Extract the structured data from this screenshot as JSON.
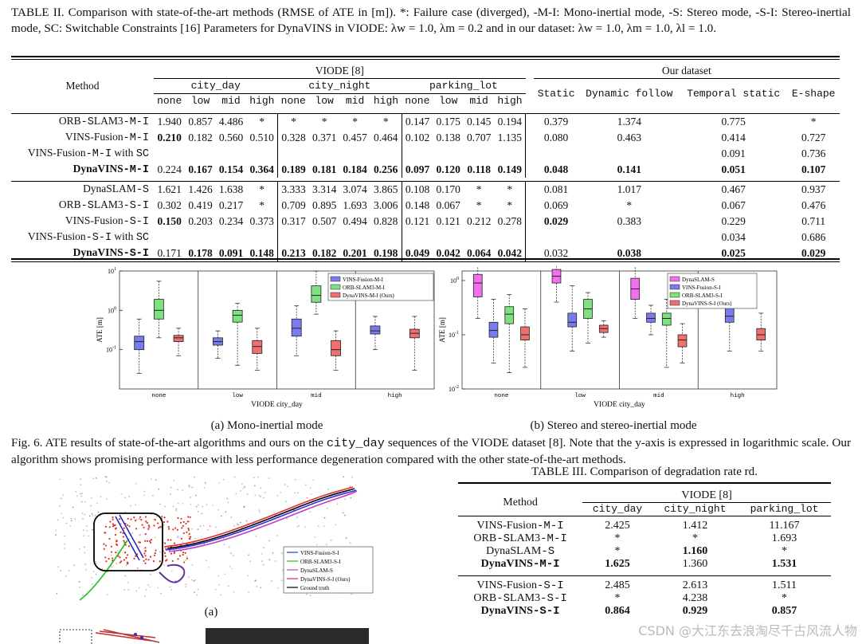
{
  "table2": {
    "caption": "TABLE II. Comparison with state-of-the-art methods (RMSE of ATE in [m]). *: Failure case (diverged), -M-I: Mono-inertial mode, -S: Stereo mode, -S-I: Stereo-inertial mode, SC: Switchable Constraints [16] Parameters for DynaVINS in VIODE: λw = 1.0, λm = 0.2 and in our dataset: λw = 1.0, λm = 1.0, λl = 1.0.",
    "method_header": "Method",
    "viode_header": "VIODE [8]",
    "ours_header": "Our dataset",
    "sequences": [
      "city_day",
      "city_night",
      "parking_lot"
    ],
    "levels": [
      "none",
      "low",
      "mid",
      "high"
    ],
    "ours_cols": [
      "Static",
      "Dynamic follow",
      "Temporal static",
      "E-shape"
    ],
    "rows": [
      {
        "method": "ORB-SLAM3-M-I",
        "vals": [
          "1.940",
          "0.857",
          "4.486",
          "*",
          "*",
          "*",
          "*",
          "*",
          "0.147",
          "0.175",
          "0.145",
          "0.194",
          "0.379",
          "1.374",
          "0.775",
          "*"
        ],
        "bold": [],
        "group": 1
      },
      {
        "method": "VINS-Fusion-M-I",
        "vals": [
          "0.210",
          "0.182",
          "0.560",
          "0.510",
          "0.328",
          "0.371",
          "0.457",
          "0.464",
          "0.102",
          "0.138",
          "0.707",
          "1.135",
          "0.080",
          "0.463",
          "0.414",
          "0.727"
        ],
        "bold": [
          0
        ],
        "group": 1
      },
      {
        "method": "VINS-Fusion-M-I with SC",
        "vals": [
          "",
          "",
          "",
          "",
          "",
          "",
          "",
          "",
          "",
          "",
          "",
          "",
          "",
          "",
          "0.091",
          "0.736"
        ],
        "bold": [],
        "group": 1
      },
      {
        "method": "DynaVINS-M-I",
        "vals": [
          "0.224",
          "0.167",
          "0.154",
          "0.364",
          "0.189",
          "0.181",
          "0.184",
          "0.256",
          "0.097",
          "0.120",
          "0.118",
          "0.149",
          "0.048",
          "0.141",
          "0.051",
          "0.107"
        ],
        "bold": [
          1,
          2,
          3,
          4,
          5,
          6,
          7,
          8,
          9,
          10,
          11,
          12,
          13,
          14,
          15
        ],
        "group": 1,
        "method_bold": true
      },
      {
        "method": "DynaSLAM-S",
        "vals": [
          "1.621",
          "1.426",
          "1.638",
          "*",
          "3.333",
          "3.314",
          "3.074",
          "3.865",
          "0.108",
          "0.170",
          "*",
          "*",
          "0.081",
          "1.017",
          "0.467",
          "0.937"
        ],
        "bold": [],
        "group": 2
      },
      {
        "method": "ORB-SLAM3-S-I",
        "vals": [
          "0.302",
          "0.419",
          "0.217",
          "*",
          "0.709",
          "0.895",
          "1.693",
          "3.006",
          "0.148",
          "0.067",
          "*",
          "*",
          "0.069",
          "*",
          "0.067",
          "0.476"
        ],
        "bold": [],
        "group": 2
      },
      {
        "method": "VINS-Fusion-S-I",
        "vals": [
          "0.150",
          "0.203",
          "0.234",
          "0.373",
          "0.317",
          "0.507",
          "0.494",
          "0.828",
          "0.121",
          "0.121",
          "0.212",
          "0.278",
          "0.029",
          "0.383",
          "0.229",
          "0.711"
        ],
        "bold": [
          0,
          12
        ],
        "group": 2
      },
      {
        "method": "VINS-Fusion-S-I with SC",
        "vals": [
          "",
          "",
          "",
          "",
          "",
          "",
          "",
          "",
          "",
          "",
          "",
          "",
          "",
          "",
          "0.034",
          "0.686"
        ],
        "bold": [],
        "group": 2
      },
      {
        "method": "DynaVINS-S-I",
        "vals": [
          "0.171",
          "0.178",
          "0.091",
          "0.148",
          "0.213",
          "0.182",
          "0.201",
          "0.198",
          "0.049",
          "0.042",
          "0.064",
          "0.042",
          "0.032",
          "0.038",
          "0.025",
          "0.029"
        ],
        "bold": [
          1,
          2,
          3,
          4,
          5,
          6,
          7,
          8,
          9,
          10,
          11,
          13,
          14,
          15
        ],
        "group": 2,
        "method_bold": true
      }
    ]
  },
  "chart_data": [
    {
      "type": "box",
      "caption": "(a) Mono-inertial mode",
      "xlabel": "VIODE city_day",
      "ylabel": "ATE [m]",
      "yscale": "log",
      "ylim": [
        0.01,
        10
      ],
      "yticks": [
        "10^1",
        "10^0",
        "10^-1"
      ],
      "categories": [
        "none",
        "low",
        "mid",
        "high"
      ],
      "series": [
        {
          "name": "VINS-Fusion-M-I",
          "color": "#7b7bf0",
          "boxes": [
            [
              0.025,
              0.1,
              0.16,
              0.22,
              0.6
            ],
            [
              0.06,
              0.13,
              0.16,
              0.2,
              0.3
            ],
            [
              0.07,
              0.22,
              0.35,
              0.6,
              1.3
            ],
            [
              0.1,
              0.25,
              0.3,
              0.4,
              0.7
            ]
          ]
        },
        {
          "name": "ORB-SLAM3-M-I",
          "color": "#7fe07f",
          "boxes": [
            [
              0.2,
              0.6,
              1.0,
              1.9,
              5.5
            ],
            [
              0.04,
              0.5,
              0.75,
              1.0,
              1.5
            ],
            [
              0.8,
              1.6,
              2.4,
              4.2,
              10
            ],
            null
          ]
        },
        {
          "name": "DynaVINS-M-I (Ours)",
          "color": "#f07070",
          "boxes": [
            [
              0.07,
              0.16,
              0.2,
              0.23,
              0.35
            ],
            [
              0.03,
              0.08,
              0.12,
              0.17,
              0.35
            ],
            [
              0.03,
              0.07,
              0.1,
              0.17,
              0.3
            ],
            [
              0.03,
              0.2,
              0.26,
              0.33,
              0.7
            ]
          ]
        }
      ]
    },
    {
      "type": "box",
      "caption": "(b) Stereo and stereo-inertial mode",
      "xlabel": "VIODE city_day",
      "ylabel": "ATE [m]",
      "yscale": "log",
      "ylim": [
        0.01,
        1.5
      ],
      "yticks": [
        "10^0",
        "10^-1",
        "10^-2"
      ],
      "categories": [
        "none",
        "low",
        "mid",
        "high"
      ],
      "series": [
        {
          "name": "DynaSLAM-S",
          "color": "#f070f0",
          "boxes": [
            [
              0.2,
              0.5,
              0.9,
              1.3,
              2.5
            ],
            [
              0.4,
              0.9,
              1.2,
              1.6,
              3.0
            ],
            [
              0.2,
              0.45,
              0.7,
              1.1,
              2.5
            ],
            null
          ]
        },
        {
          "name": "VINS-Fusion-S-I",
          "color": "#7b7bf0",
          "boxes": [
            [
              0.03,
              0.09,
              0.12,
              0.17,
              0.45
            ],
            [
              0.05,
              0.14,
              0.17,
              0.25,
              0.8
            ],
            [
              0.1,
              0.17,
              0.2,
              0.25,
              0.35
            ],
            [
              0.05,
              0.17,
              0.22,
              0.32,
              0.5
            ]
          ]
        },
        {
          "name": "ORB-SLAM3-S-I",
          "color": "#7fe07f",
          "boxes": [
            [
              0.02,
              0.16,
              0.24,
              0.33,
              0.55
            ],
            [
              0.07,
              0.2,
              0.3,
              0.45,
              0.6
            ],
            [
              0.025,
              0.15,
              0.2,
              0.25,
              0.45
            ],
            null
          ]
        },
        {
          "name": "DynaVINS-S-I (Ours)",
          "color": "#f07070",
          "boxes": [
            [
              0.025,
              0.08,
              0.1,
              0.14,
              0.3
            ],
            [
              0.09,
              0.11,
              0.13,
              0.15,
              0.18
            ],
            [
              0.03,
              0.06,
              0.08,
              0.1,
              0.16
            ],
            [
              0.05,
              0.08,
              0.1,
              0.13,
              0.25
            ]
          ]
        }
      ]
    }
  ],
  "fig6": {
    "caption": "Fig. 6. ATE results of state-of-the-art algorithms and ours on the city_day sequences of the VIODE dataset [8]. Note that the y-axis is expressed in logarithmic scale. Our algorithm shows promising performance with less performance degeneration compared with the other state-of-the-art methods."
  },
  "traj_legend": [
    "VINS-Fusion-S-I",
    "ORB-SLAM3-S-I",
    "DynaSLAM-S",
    "DynaVINS-S-I (Ours)",
    "Ground truth"
  ],
  "traj_legend_colors": [
    "#3030e0",
    "#20c020",
    "#c040c0",
    "#e03030",
    "#000000"
  ],
  "traj_sub": "(a)",
  "table3": {
    "caption": "TABLE III. Comparison of degradation rate rd.",
    "method_header": "Method",
    "viode_header": "VIODE [8]",
    "cols": [
      "city_day",
      "city_night",
      "parking_lot"
    ],
    "rows": [
      {
        "method": "VINS-Fusion-M-I",
        "vals": [
          "2.425",
          "1.412",
          "11.167"
        ],
        "bold": []
      },
      {
        "method": "ORB-SLAM3-M-I",
        "vals": [
          "*",
          "*",
          "1.693"
        ],
        "bold": []
      },
      {
        "method": "DynaSLAM-S",
        "vals": [
          "*",
          "1.160",
          "*"
        ],
        "bold": [
          1
        ]
      },
      {
        "method": "DynaVINS-M-I",
        "vals": [
          "1.625",
          "1.360",
          "1.531"
        ],
        "bold": [
          0,
          2
        ],
        "method_bold": true
      },
      {
        "method": "VINS-Fusion-S-I",
        "vals": [
          "2.485",
          "2.613",
          "1.511"
        ],
        "bold": []
      },
      {
        "method": "ORB-SLAM3-S-I",
        "vals": [
          "*",
          "4.238",
          "*"
        ],
        "bold": []
      },
      {
        "method": "DynaVINS-S-I",
        "vals": [
          "0.864",
          "0.929",
          "0.857"
        ],
        "bold": [
          0,
          1,
          2
        ],
        "method_bold": true
      }
    ]
  },
  "watermark": "CSDN @大江东去浪淘尽千古风流人物"
}
